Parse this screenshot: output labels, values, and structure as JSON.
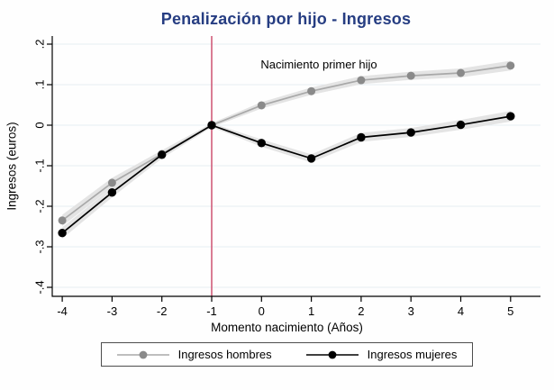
{
  "figure": {
    "background": "#fefefe"
  },
  "colors": {
    "title": "#263d82",
    "grid": "#e7eef3",
    "axis": "#000000",
    "tick_label": "#000000",
    "vline": "#cb4668",
    "band": "#e4e4e4",
    "legend_border": "#4d4d4d"
  },
  "chart_data": {
    "type": "line",
    "title": "Penalización por hijo - Ingresos",
    "xlabel": "Momento nacimiento (Años)",
    "ylabel": "Ingresos (euros)",
    "x": [
      -4,
      -3,
      -2,
      -1,
      0,
      1,
      2,
      3,
      4,
      5
    ],
    "xtick_labels": [
      "-4",
      "-3",
      "-2",
      "-1",
      "0",
      "1",
      "2",
      "3",
      "4",
      "5"
    ],
    "yticks": [
      0.2,
      0.1,
      0,
      -0.1,
      -0.2,
      -0.3,
      -0.4
    ],
    "ytick_labels": [
      ".2",
      ".1",
      "0",
      "-.1",
      "-.2",
      "-.3",
      "-.4"
    ],
    "ylim": [
      -0.42,
      0.22
    ],
    "grid": true,
    "legend_position": "bottom",
    "vline_x": -1,
    "annotation": {
      "text": "Nacimiento primer hijo",
      "x": 1.15,
      "y": 0.148
    },
    "series": [
      {
        "name": "Ingresos hombres",
        "color": "#a8a8a8",
        "marker_color": "#8a8a8a",
        "values": [
          -0.235,
          -0.142,
          -0.071,
          0,
          0.049,
          0.084,
          0.111,
          0.122,
          0.129,
          0.147
        ],
        "ci_halfwidth": [
          0.014,
          0.012,
          0.009,
          0.005,
          0.008,
          0.009,
          0.01,
          0.01,
          0.011,
          0.012
        ]
      },
      {
        "name": "Ingresos mujeres",
        "color": "#000000",
        "marker_color": "#000000",
        "values": [
          -0.266,
          -0.166,
          -0.073,
          0,
          -0.044,
          -0.082,
          -0.03,
          -0.018,
          0.001,
          0.022
        ],
        "ci_halfwidth": [
          0.014,
          0.012,
          0.009,
          0.005,
          0.009,
          0.01,
          0.011,
          0.011,
          0.012,
          0.013
        ]
      }
    ]
  }
}
